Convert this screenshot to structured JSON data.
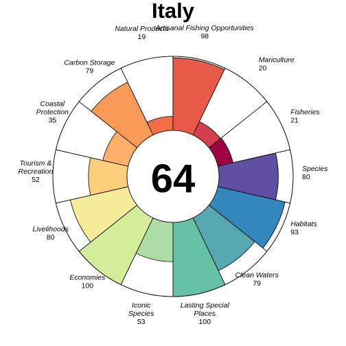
{
  "chart_data": {
    "type": "flower",
    "title": "Italy",
    "center_score": "64",
    "max_value": 100,
    "petals": [
      {
        "label": "Natural Products",
        "value": 19,
        "color": "#F46D43"
      },
      {
        "label": "Artisanal Fishing Opportunities",
        "value": 98,
        "color": "#E65A47"
      },
      {
        "label": "Mariculture",
        "value": 20,
        "color": "#D53E4F"
      },
      {
        "label": "Fisheries",
        "value": 21,
        "color": "#9E0142"
      },
      {
        "label": "Species",
        "value": 80,
        "color": "#5E4FA2"
      },
      {
        "label": "Habitats",
        "value": 93,
        "color": "#3288BD"
      },
      {
        "label": "Clean Waters",
        "value": 79,
        "color": "#55A7B0"
      },
      {
        "label": "Lasting Special Places",
        "value": 100,
        "color": "#66C2A5"
      },
      {
        "label": "Iconic Species",
        "value": 53,
        "color": "#ABDDA4"
      },
      {
        "label": "Economies",
        "value": 100,
        "color": "#D4ED9B"
      },
      {
        "label": "Livelihoods",
        "value": 80,
        "color": "#F6EB99"
      },
      {
        "label": "Tourism & Recreation",
        "value": 52,
        "color": "#FDCF7A"
      },
      {
        "label": "Coastal Protection",
        "value": 35,
        "color": "#FDB068"
      },
      {
        "label": "Carbon Storage",
        "value": 79,
        "color": "#FA9A57"
      }
    ]
  }
}
